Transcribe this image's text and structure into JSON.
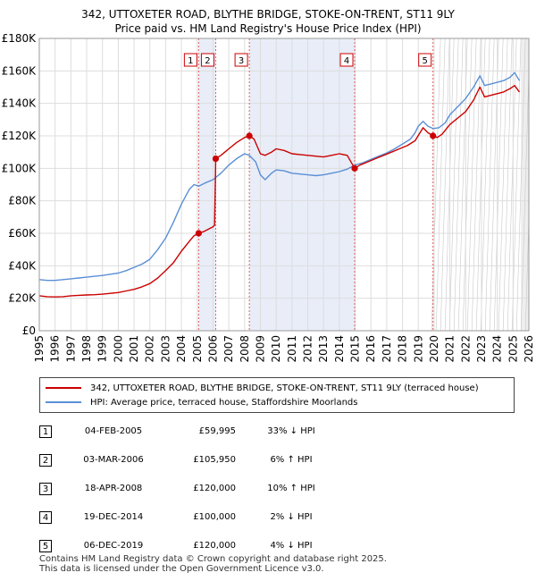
{
  "chart_data": {
    "type": "line",
    "title": "342, UTTOXETER ROAD, BLYTHE BRIDGE, STOKE-ON-TRENT, ST11 9LY",
    "subtitle": "Price paid vs. HM Land Registry's House Price Index (HPI)",
    "xlabel": "",
    "ylabel": "",
    "xlim": [
      1995,
      2026
    ],
    "ylim": [
      0,
      180000
    ],
    "x_ticks": [
      "1995",
      "1996",
      "1997",
      "1998",
      "1999",
      "2000",
      "2001",
      "2002",
      "2003",
      "2004",
      "2005",
      "2006",
      "2007",
      "2008",
      "2009",
      "2010",
      "2011",
      "2012",
      "2013",
      "2014",
      "2015",
      "2016",
      "2017",
      "2018",
      "2019",
      "2020",
      "2021",
      "2022",
      "2023",
      "2024",
      "2025",
      "2026"
    ],
    "y_ticks": [
      {
        "value": 0,
        "label": "£0"
      },
      {
        "value": 20000,
        "label": "£20K"
      },
      {
        "value": 40000,
        "label": "£40K"
      },
      {
        "value": 60000,
        "label": "£60K"
      },
      {
        "value": 80000,
        "label": "£80K"
      },
      {
        "value": 100000,
        "label": "£100K"
      },
      {
        "value": 120000,
        "label": "£120K"
      },
      {
        "value": 140000,
        "label": "£140K"
      },
      {
        "value": 160000,
        "label": "£160K"
      },
      {
        "value": 180000,
        "label": "£180K"
      }
    ],
    "shaded_ranges": [
      [
        2005.09,
        2006.17
      ],
      [
        2008.3,
        2014.97
      ]
    ],
    "future_start": 2025.5,
    "series": [
      {
        "name": "342, UTTOXETER ROAD, BLYTHE BRIDGE, STOKE-ON-TRENT, ST11 9LY (terraced house)",
        "color": "#cc0000",
        "points": [
          [
            1995.0,
            21500
          ],
          [
            1995.5,
            21000
          ],
          [
            1996.0,
            20800
          ],
          [
            1996.5,
            21000
          ],
          [
            1997.0,
            21500
          ],
          [
            1997.5,
            21800
          ],
          [
            1998.0,
            22000
          ],
          [
            1998.5,
            22200
          ],
          [
            1999.0,
            22500
          ],
          [
            1999.5,
            23000
          ],
          [
            2000.0,
            23500
          ],
          [
            2000.5,
            24500
          ],
          [
            2001.0,
            25500
          ],
          [
            2001.5,
            27000
          ],
          [
            2002.0,
            29000
          ],
          [
            2002.5,
            32500
          ],
          [
            2003.0,
            37000
          ],
          [
            2003.5,
            42000
          ],
          [
            2004.0,
            49000
          ],
          [
            2004.5,
            55000
          ],
          [
            2004.8,
            58500
          ],
          [
            2005.09,
            59995
          ],
          [
            2005.4,
            61000
          ],
          [
            2005.7,
            62500
          ],
          [
            2006.0,
            64000
          ],
          [
            2006.1,
            65000
          ],
          [
            2006.17,
            105950
          ],
          [
            2006.5,
            108000
          ],
          [
            2007.0,
            112000
          ],
          [
            2007.5,
            116000
          ],
          [
            2008.0,
            119000
          ],
          [
            2008.3,
            120000
          ],
          [
            2008.6,
            118000
          ],
          [
            2009.0,
            109000
          ],
          [
            2009.3,
            108000
          ],
          [
            2009.7,
            110000
          ],
          [
            2010.0,
            112000
          ],
          [
            2010.5,
            111000
          ],
          [
            2011.0,
            109000
          ],
          [
            2011.5,
            108500
          ],
          [
            2012.0,
            108000
          ],
          [
            2012.5,
            107500
          ],
          [
            2013.0,
            107000
          ],
          [
            2013.5,
            108000
          ],
          [
            2014.0,
            109000
          ],
          [
            2014.5,
            108000
          ],
          [
            2014.97,
            100000
          ],
          [
            2015.3,
            102000
          ],
          [
            2015.8,
            104000
          ],
          [
            2016.3,
            106000
          ],
          [
            2016.8,
            108000
          ],
          [
            2017.3,
            110000
          ],
          [
            2017.8,
            112000
          ],
          [
            2018.3,
            114000
          ],
          [
            2018.8,
            117000
          ],
          [
            2019.3,
            125000
          ],
          [
            2019.6,
            122000
          ],
          [
            2019.93,
            120000
          ],
          [
            2020.2,
            119000
          ],
          [
            2020.5,
            121000
          ],
          [
            2021.0,
            127000
          ],
          [
            2021.5,
            131000
          ],
          [
            2022.0,
            135000
          ],
          [
            2022.5,
            142000
          ],
          [
            2022.9,
            150000
          ],
          [
            2023.2,
            144000
          ],
          [
            2023.6,
            145000
          ],
          [
            2024.0,
            146000
          ],
          [
            2024.4,
            147000
          ],
          [
            2024.8,
            149000
          ],
          [
            2025.1,
            151000
          ],
          [
            2025.4,
            147000
          ]
        ]
      },
      {
        "name": "HPI: Average price, terraced house, Staffordshire Moorlands",
        "color": "#5b8fd6",
        "points": [
          [
            1995.0,
            31500
          ],
          [
            1995.5,
            31000
          ],
          [
            1996.0,
            31000
          ],
          [
            1996.5,
            31500
          ],
          [
            1997.0,
            32000
          ],
          [
            1997.5,
            32500
          ],
          [
            1998.0,
            33000
          ],
          [
            1998.5,
            33500
          ],
          [
            1999.0,
            34000
          ],
          [
            1999.5,
            34800
          ],
          [
            2000.0,
            35500
          ],
          [
            2000.5,
            37000
          ],
          [
            2001.0,
            39000
          ],
          [
            2001.5,
            41000
          ],
          [
            2002.0,
            44000
          ],
          [
            2002.5,
            50000
          ],
          [
            2003.0,
            57000
          ],
          [
            2003.5,
            67000
          ],
          [
            2004.0,
            78000
          ],
          [
            2004.5,
            87000
          ],
          [
            2004.8,
            90000
          ],
          [
            2005.1,
            89000
          ],
          [
            2005.5,
            91000
          ],
          [
            2006.0,
            93000
          ],
          [
            2006.5,
            97000
          ],
          [
            2007.0,
            102000
          ],
          [
            2007.5,
            106000
          ],
          [
            2008.0,
            109000
          ],
          [
            2008.3,
            108000
          ],
          [
            2008.7,
            104000
          ],
          [
            2009.0,
            96000
          ],
          [
            2009.3,
            93000
          ],
          [
            2009.7,
            97000
          ],
          [
            2010.0,
            99000
          ],
          [
            2010.5,
            98500
          ],
          [
            2011.0,
            97000
          ],
          [
            2011.5,
            96500
          ],
          [
            2012.0,
            96000
          ],
          [
            2012.5,
            95500
          ],
          [
            2013.0,
            96000
          ],
          [
            2013.5,
            97000
          ],
          [
            2014.0,
            98000
          ],
          [
            2014.5,
            99500
          ],
          [
            2014.97,
            102000
          ],
          [
            2015.5,
            103500
          ],
          [
            2016.0,
            105500
          ],
          [
            2016.5,
            107500
          ],
          [
            2017.0,
            109500
          ],
          [
            2017.5,
            112000
          ],
          [
            2018.0,
            115000
          ],
          [
            2018.5,
            118000
          ],
          [
            2018.8,
            122000
          ],
          [
            2019.0,
            126000
          ],
          [
            2019.3,
            129000
          ],
          [
            2019.6,
            126000
          ],
          [
            2019.93,
            124500
          ],
          [
            2020.3,
            125000
          ],
          [
            2020.7,
            128000
          ],
          [
            2021.0,
            133000
          ],
          [
            2021.5,
            138000
          ],
          [
            2022.0,
            143000
          ],
          [
            2022.5,
            150000
          ],
          [
            2022.9,
            157000
          ],
          [
            2023.2,
            151000
          ],
          [
            2023.6,
            152000
          ],
          [
            2024.0,
            153000
          ],
          [
            2024.4,
            154000
          ],
          [
            2024.8,
            156000
          ],
          [
            2025.1,
            159000
          ],
          [
            2025.4,
            154000
          ]
        ]
      }
    ],
    "sales": [
      {
        "num": "1",
        "x": 2005.09,
        "y": 59995,
        "date": "04-FEB-2005",
        "price": "£59,995",
        "hpi": "33% ↓ HPI"
      },
      {
        "num": "2",
        "x": 2006.17,
        "y": 105950,
        "date": "03-MAR-2006",
        "price": "£105,950",
        "hpi": "6% ↑ HPI"
      },
      {
        "num": "3",
        "x": 2008.3,
        "y": 120000,
        "date": "18-APR-2008",
        "price": "£120,000",
        "hpi": "10% ↑ HPI"
      },
      {
        "num": "4",
        "x": 2014.97,
        "y": 100000,
        "date": "19-DEC-2014",
        "price": "£100,000",
        "hpi": "2% ↓ HPI"
      },
      {
        "num": "5",
        "x": 2019.93,
        "y": 120000,
        "date": "06-DEC-2019",
        "price": "£120,000",
        "hpi": "4% ↓ HPI"
      }
    ]
  },
  "legend": {
    "property_label": "342, UTTOXETER ROAD, BLYTHE BRIDGE, STOKE-ON-TRENT, ST11 9LY (terraced house)",
    "hpi_label": "HPI: Average price, terraced house, Staffordshire Moorlands",
    "property_color": "#cc0000",
    "hpi_color": "#5b8fd6"
  },
  "footer": {
    "line1": "Contains HM Land Registry data © Crown copyright and database right 2025.",
    "line2": "This data is licensed under the Open Government Licence v3.0."
  }
}
